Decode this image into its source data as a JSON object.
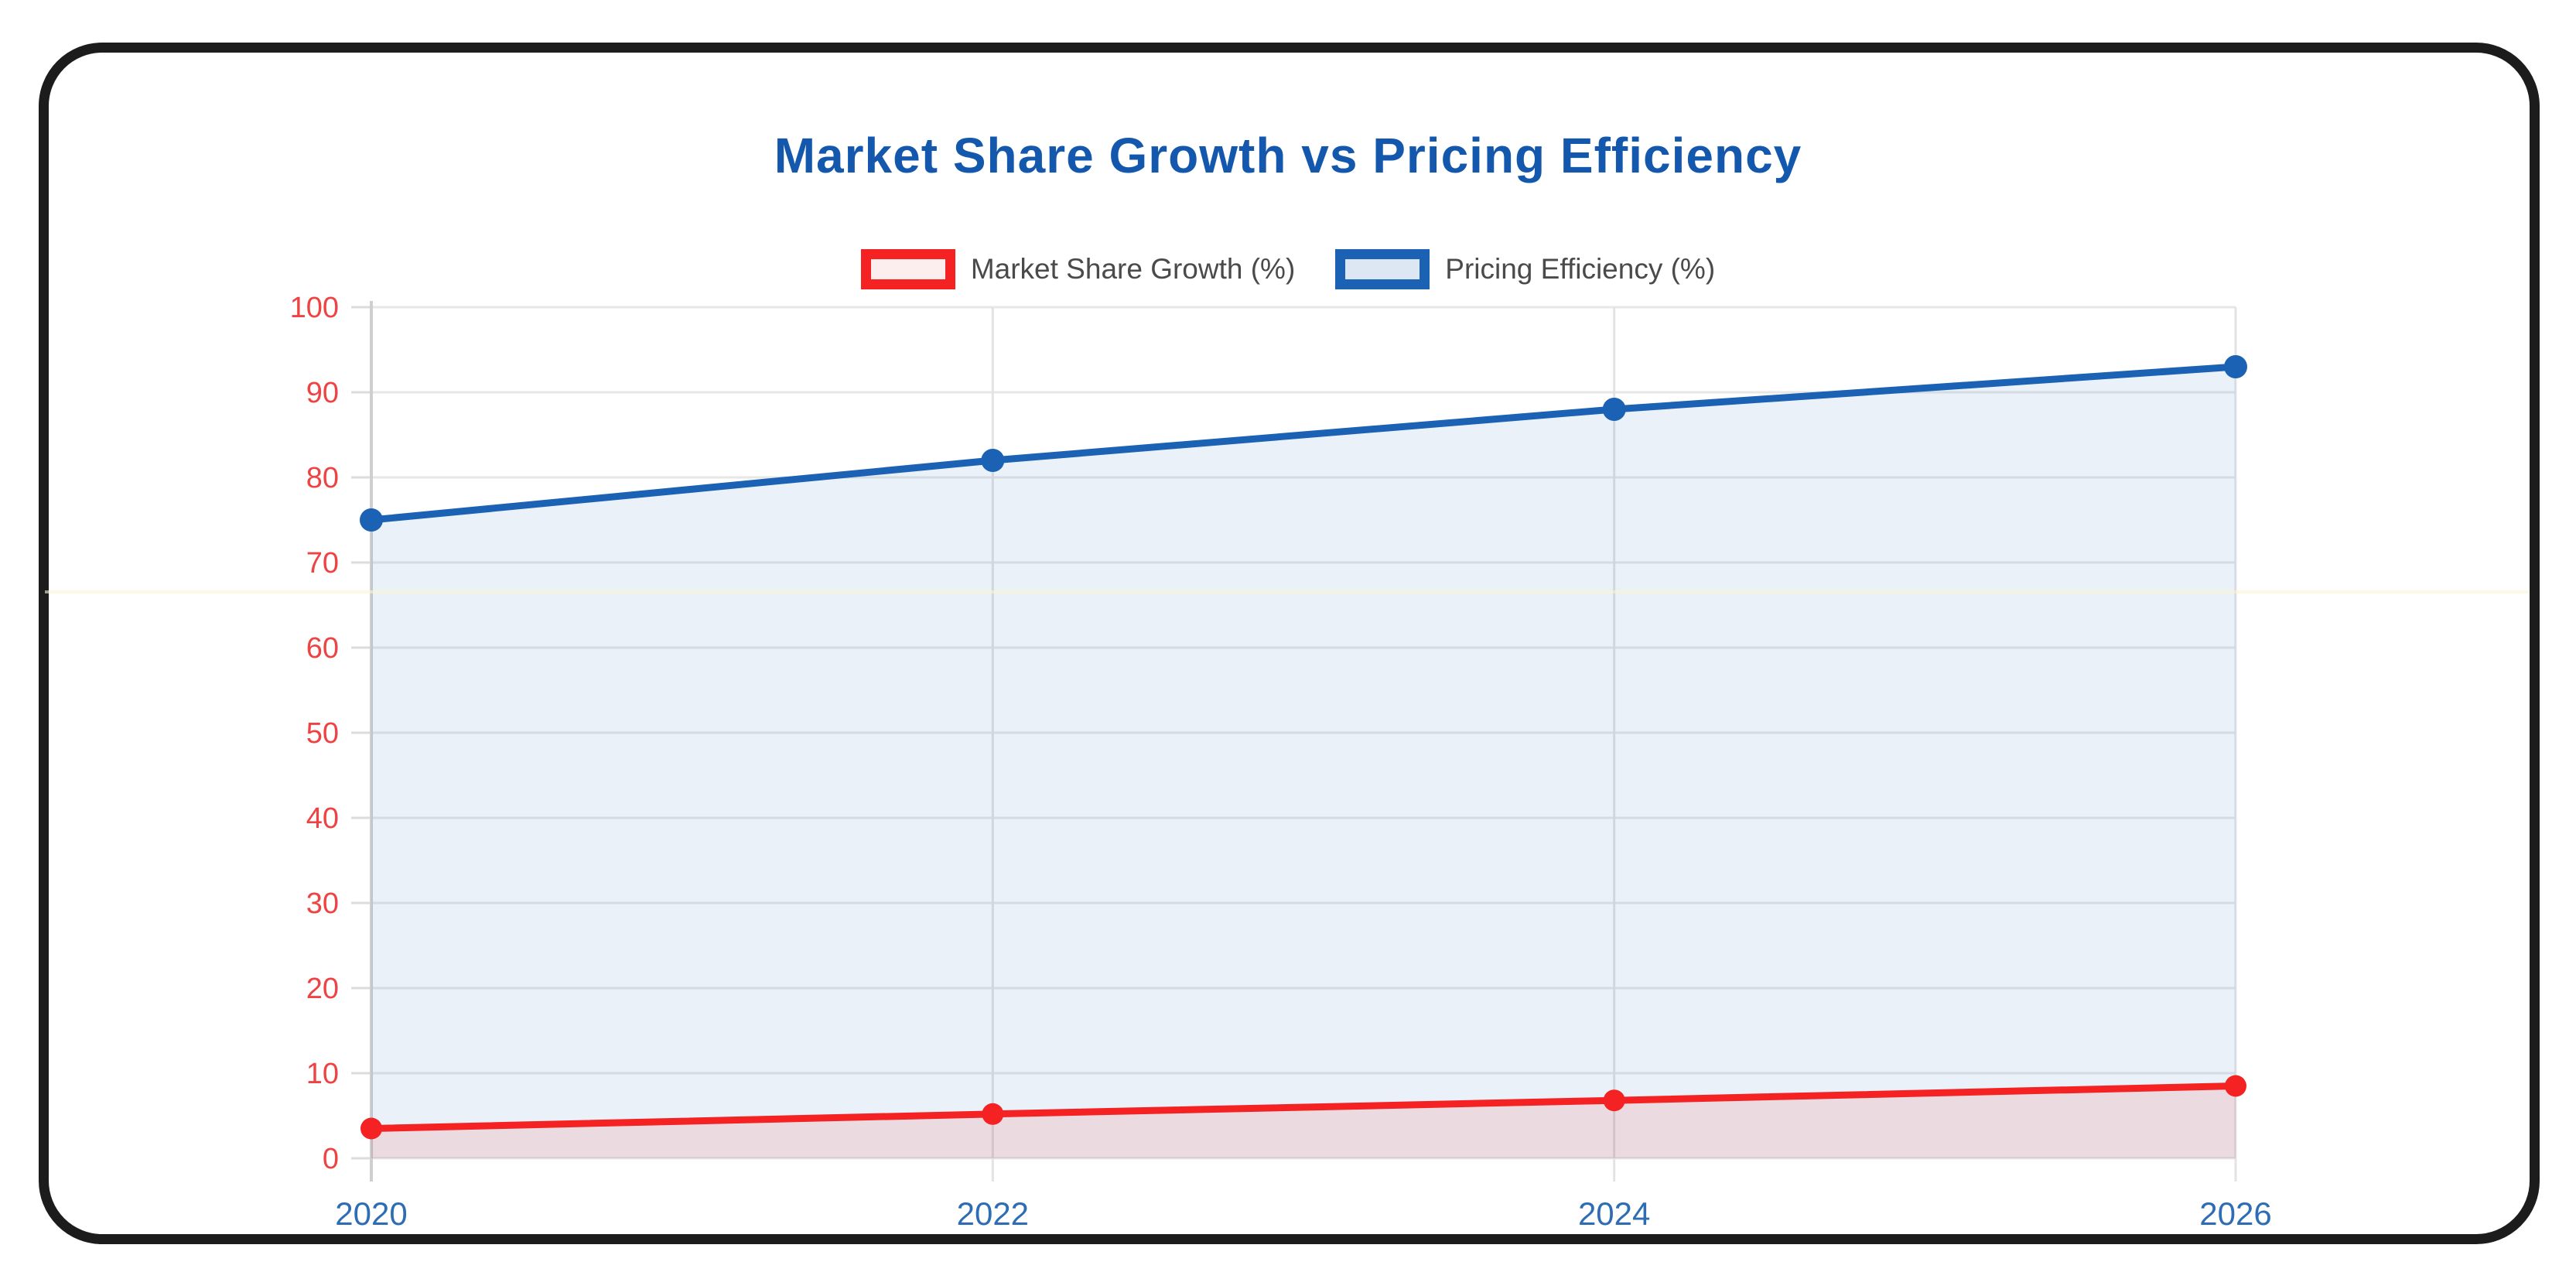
{
  "page": {
    "background": "#ffffff",
    "frame_border_color": "#1c1c1c"
  },
  "chart_data": {
    "type": "area",
    "title": "Market Share Growth vs Pricing Efficiency",
    "title_color": "#1458ad",
    "x": [
      "2020",
      "2022",
      "2024",
      "2026"
    ],
    "series": [
      {
        "name": "Market Share Growth (%)",
        "values": [
          3.5,
          5.2,
          6.8,
          8.5
        ],
        "line_color": "#f42222",
        "fill_color": "rgba(244,34,34,0.10)",
        "swatch_fill": "#fceeee",
        "point_radius": 14
      },
      {
        "name": "Pricing Efficiency (%)",
        "values": [
          75,
          82,
          88,
          93
        ],
        "line_color": "#1b62b4",
        "fill_color": "rgba(27,98,180,0.09)",
        "swatch_fill": "#dce7f3",
        "point_radius": 15
      }
    ],
    "ylim": [
      0,
      100
    ],
    "yticks": [
      0,
      10,
      20,
      30,
      40,
      50,
      60,
      70,
      80,
      90,
      100
    ],
    "ytick_color": "#ee4343",
    "xtick_color": "#2e6db4",
    "grid": true,
    "legend_position": "top",
    "legend_text_color": "#4a4a4a",
    "grid_color": "#e7e7e7",
    "axis_color": "#cfcfcf"
  }
}
